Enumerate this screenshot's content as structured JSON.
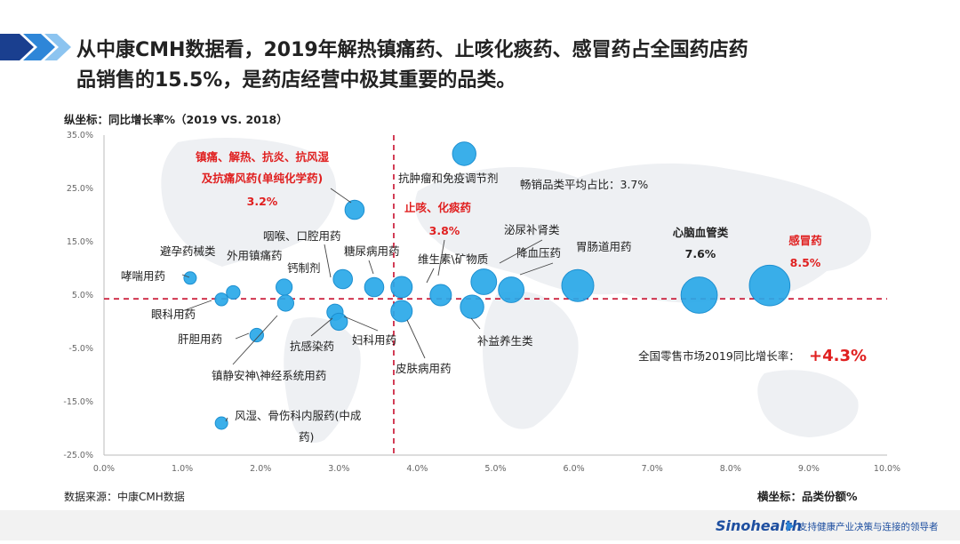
{
  "header": {
    "title_line1": "从中康CMH数据看，2019年解热镇痛药、止咳化痰药、感冒药占全国药店药",
    "title_line2": "品销售的15.5%，是药店经营中极其重要的品类。"
  },
  "chart_data": {
    "type": "scatter",
    "title": "",
    "ylabel": "纵坐标：同比增长率%（2019 VS. 2018）",
    "xlabel": "横坐标：品类份额%",
    "xlim": [
      0,
      10
    ],
    "ylim": [
      -25,
      35
    ],
    "x_ticks": [
      "0.0%",
      "1.0%",
      "2.0%",
      "3.0%",
      "4.0%",
      "5.0%",
      "6.0%",
      "7.0%",
      "8.0%",
      "9.0%",
      "10.0%"
    ],
    "y_ticks": [
      "35.0%",
      "25.0%",
      "15.0%",
      "5.0%",
      "-5.0%",
      "-15.0%",
      "-25.0%"
    ],
    "x_tick_values": [
      0,
      1,
      2,
      3,
      4,
      5,
      6,
      7,
      8,
      9,
      10
    ],
    "y_tick_values": [
      35,
      25,
      15,
      5,
      -5,
      -15,
      -25
    ],
    "ref_lines": {
      "x": 3.7,
      "y": 4.3
    },
    "points": [
      {
        "name": "哮喘用药",
        "x": 1.1,
        "y": 8.2,
        "size": 0.25,
        "label_pos": "left"
      },
      {
        "name": "避孕药械类",
        "x": 1.5,
        "y": 4.2,
        "size": 0.3,
        "label_pos": "above"
      },
      {
        "name": "眼科用药",
        "x": 1.5,
        "y": 4.2,
        "size": 0.3,
        "label_pos": "below"
      },
      {
        "name": "外用镇痛药",
        "x": 1.65,
        "y": 5.5,
        "size": 0.32,
        "label_pos": "above"
      },
      {
        "name": "肝胆用药",
        "x": 1.95,
        "y": -2.5,
        "size": 0.32,
        "label_pos": "left"
      },
      {
        "name": "风湿、骨伤科内服药(中成药)",
        "x": 1.5,
        "y": -19.0,
        "size": 0.28,
        "label_pos": "right"
      },
      {
        "name": "钙制剂",
        "x": 2.3,
        "y": 6.5,
        "size": 0.38,
        "label_pos": "above"
      },
      {
        "name": "镇静安神\\神经系统用药",
        "x": 2.32,
        "y": 3.5,
        "size": 0.38,
        "label_pos": "below"
      },
      {
        "name": "抗感染药",
        "x": 2.95,
        "y": 1.8,
        "size": 0.38,
        "label_pos": "below"
      },
      {
        "name": "咽喉、口腔用药",
        "x": 3.05,
        "y": 8.0,
        "size": 0.45,
        "label_pos": "above"
      },
      {
        "name": "镇痛、解热、抗炎、抗风湿及抗痛风药(单纯化学药)",
        "x": 3.2,
        "y": 21.0,
        "size": 0.45,
        "label_pos": "left",
        "highlight": true,
        "value_label": "3.2%"
      },
      {
        "name": "糖尿病用药",
        "x": 3.45,
        "y": 6.5,
        "size": 0.45,
        "label_pos": "above"
      },
      {
        "name": "妇科用药",
        "x": 3.0,
        "y": 0.0,
        "size": 0.4,
        "label_pos": "below"
      },
      {
        "name": "止咳、化痰药",
        "x": 3.8,
        "y": 6.5,
        "size": 0.5,
        "label_pos": "above",
        "highlight": true,
        "value_label": "3.8%"
      },
      {
        "name": "皮肤病用药",
        "x": 3.8,
        "y": 2.0,
        "size": 0.5,
        "label_pos": "below"
      },
      {
        "name": "维生素\\矿物质",
        "x": 4.3,
        "y": 5.0,
        "size": 0.5,
        "label_pos": "above"
      },
      {
        "name": "抗肿瘤和免疫调节剂",
        "x": 4.6,
        "y": 31.5,
        "size": 0.55,
        "label_pos": "below"
      },
      {
        "name": "补益养生类",
        "x": 4.7,
        "y": 2.8,
        "size": 0.55,
        "label_pos": "below"
      },
      {
        "name": "泌尿补肾类",
        "x": 4.85,
        "y": 7.5,
        "size": 0.6,
        "label_pos": "above"
      },
      {
        "name": "降血压药",
        "x": 5.2,
        "y": 6.0,
        "size": 0.6,
        "label_pos": "above"
      },
      {
        "name": "胃肠道用药",
        "x": 6.05,
        "y": 6.8,
        "size": 0.75,
        "label_pos": "above"
      },
      {
        "name": "心脑血管类",
        "x": 7.6,
        "y": 5.0,
        "size": 0.85,
        "label_pos": "above",
        "value_label": "7.6%"
      },
      {
        "name": "感冒药",
        "x": 8.5,
        "y": 6.8,
        "size": 0.95,
        "label_pos": "above",
        "highlight": true,
        "value_label": "8.5%"
      }
    ]
  },
  "annotations": {
    "analgesic_line1": "镇痛、解热、抗炎、抗风湿",
    "analgesic_line2": "及抗痛风药(单纯化学药)",
    "analgesic_value": "3.2%",
    "cough_name": "止咳、化痰药",
    "cough_value": "3.8%",
    "cold_name": "感冒药",
    "cold_value": "8.5%",
    "cardio_name": "心脑血管类",
    "cardio_value": "7.6%",
    "avg_share_text": "畅销品类平均占比：3.7%",
    "market_growth_label": "全国零售市场2019同比增长率：",
    "market_growth_value": "+4.3%",
    "rheum_line1": "风湿、骨伤科内服药(中成",
    "rheum_line2": "药)"
  },
  "footer": {
    "source": "数据来源：中康CMH数据",
    "x_axis_label": "横坐标：品类份额%",
    "brand": "Sinohealth",
    "slogan": "支持健康产业决策与连接的领导者"
  },
  "colors": {
    "bubble": "#29a8e8",
    "bubble_stroke": "#1d8fd0",
    "ref_line": "#c8102e",
    "accent_red": "#e02020",
    "brand_blue": "#1e4fa0",
    "map_gray": "#eef0f3"
  }
}
